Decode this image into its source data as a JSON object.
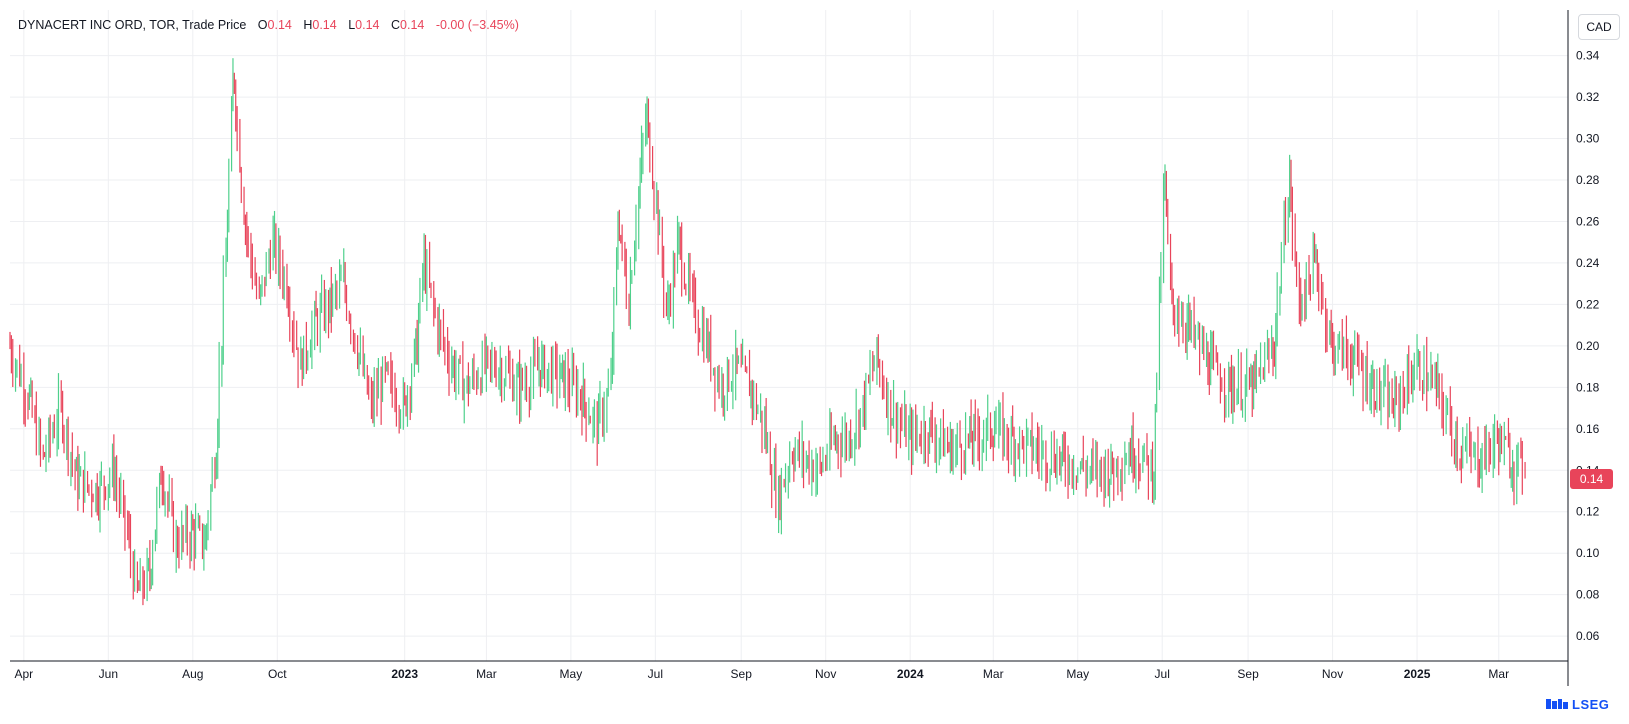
{
  "header": {
    "instrument": "DYNACERT INC ORD, TOR, Trade Price",
    "open_label": "O",
    "open_value": "0.14",
    "high_label": "H",
    "high_value": "0.14",
    "low_label": "L",
    "low_value": "0.14",
    "close_label": "C",
    "close_value": "0.14",
    "change": "-0.00 (−3.45%)"
  },
  "currency_button": "CAD",
  "last_price_label": "0.14",
  "brand": {
    "name": "LSEG",
    "icon": "lseg-logo-icon"
  },
  "colors": {
    "up": "#4fd08c",
    "down": "#e8445a",
    "grid": "#eeeff2",
    "axis": "#131722",
    "brand": "#1450f5"
  },
  "chart_data": {
    "type": "ohlc-bar",
    "title": "DYNACERT INC ORD, TOR, Trade Price",
    "currency": "CAD",
    "y_ticks": [
      "0.06",
      "0.08",
      "0.10",
      "0.12",
      "0.14",
      "0.16",
      "0.18",
      "0.20",
      "0.22",
      "0.24",
      "0.26",
      "0.28",
      "0.30",
      "0.32",
      "0.34"
    ],
    "ylim": [
      0.048,
      0.362
    ],
    "x_range": [
      "2022-03-22",
      "2025-04-20"
    ],
    "x_ticks": [
      {
        "date": "2022-04-01",
        "label": "Apr",
        "bold": false
      },
      {
        "date": "2022-06-01",
        "label": "Jun",
        "bold": false
      },
      {
        "date": "2022-08-01",
        "label": "Aug",
        "bold": false
      },
      {
        "date": "2022-10-01",
        "label": "Oct",
        "bold": false
      },
      {
        "date": "2023-01-01",
        "label": "2023",
        "bold": true
      },
      {
        "date": "2023-03-01",
        "label": "Mar",
        "bold": false
      },
      {
        "date": "2023-05-01",
        "label": "May",
        "bold": false
      },
      {
        "date": "2023-07-01",
        "label": "Jul",
        "bold": false
      },
      {
        "date": "2023-09-01",
        "label": "Sep",
        "bold": false
      },
      {
        "date": "2023-11-01",
        "label": "Nov",
        "bold": false
      },
      {
        "date": "2024-01-01",
        "label": "2024",
        "bold": true
      },
      {
        "date": "2024-03-01",
        "label": "Mar",
        "bold": false
      },
      {
        "date": "2024-05-01",
        "label": "May",
        "bold": false
      },
      {
        "date": "2024-07-01",
        "label": "Jul",
        "bold": false
      },
      {
        "date": "2024-09-01",
        "label": "Sep",
        "bold": false
      },
      {
        "date": "2024-11-01",
        "label": "Nov",
        "bold": false
      },
      {
        "date": "2025-01-01",
        "label": "2025",
        "bold": true
      },
      {
        "date": "2025-03-01",
        "label": "Mar",
        "bold": false
      }
    ],
    "series": [
      {
        "points": [
          [
            "2022-03-22",
            0.2
          ],
          [
            "2022-04-05",
            0.175
          ],
          [
            "2022-04-15",
            0.145
          ],
          [
            "2022-04-28",
            0.17
          ],
          [
            "2022-05-10",
            0.135
          ],
          [
            "2022-05-25",
            0.13
          ],
          [
            "2022-06-05",
            0.14
          ],
          [
            "2022-06-15",
            0.11
          ],
          [
            "2022-06-22",
            0.08
          ],
          [
            "2022-07-01",
            0.09
          ],
          [
            "2022-07-10",
            0.14
          ],
          [
            "2022-07-20",
            0.105
          ],
          [
            "2022-08-01",
            0.11
          ],
          [
            "2022-08-10",
            0.105
          ],
          [
            "2022-08-18",
            0.15
          ],
          [
            "2022-08-25",
            0.24
          ],
          [
            "2022-08-31",
            0.33
          ],
          [
            "2022-09-08",
            0.26
          ],
          [
            "2022-09-18",
            0.22
          ],
          [
            "2022-09-28",
            0.25
          ],
          [
            "2022-10-08",
            0.23
          ],
          [
            "2022-10-18",
            0.19
          ],
          [
            "2022-10-28",
            0.21
          ],
          [
            "2022-11-08",
            0.22
          ],
          [
            "2022-11-18",
            0.23
          ],
          [
            "2022-11-28",
            0.2
          ],
          [
            "2022-12-08",
            0.17
          ],
          [
            "2022-12-18",
            0.185
          ],
          [
            "2023-01-01",
            0.17
          ],
          [
            "2023-01-10",
            0.2
          ],
          [
            "2023-01-15",
            0.24
          ],
          [
            "2023-01-25",
            0.21
          ],
          [
            "2023-02-05",
            0.19
          ],
          [
            "2023-02-15",
            0.18
          ],
          [
            "2023-02-28",
            0.19
          ],
          [
            "2023-03-10",
            0.19
          ],
          [
            "2023-03-25",
            0.18
          ],
          [
            "2023-04-10",
            0.19
          ],
          [
            "2023-04-25",
            0.185
          ],
          [
            "2023-05-10",
            0.175
          ],
          [
            "2023-05-20",
            0.16
          ],
          [
            "2023-05-30",
            0.18
          ],
          [
            "2023-06-05",
            0.26
          ],
          [
            "2023-06-12",
            0.22
          ],
          [
            "2023-06-20",
            0.28
          ],
          [
            "2023-06-25",
            0.31
          ],
          [
            "2023-07-02",
            0.27
          ],
          [
            "2023-07-10",
            0.215
          ],
          [
            "2023-07-18",
            0.25
          ],
          [
            "2023-07-28",
            0.22
          ],
          [
            "2023-08-08",
            0.2
          ],
          [
            "2023-08-18",
            0.18
          ],
          [
            "2023-08-28",
            0.19
          ],
          [
            "2023-09-08",
            0.18
          ],
          [
            "2023-09-18",
            0.16
          ],
          [
            "2023-09-28",
            0.125
          ],
          [
            "2023-10-08",
            0.15
          ],
          [
            "2023-10-18",
            0.145
          ],
          [
            "2023-10-28",
            0.14
          ],
          [
            "2023-11-08",
            0.155
          ],
          [
            "2023-11-18",
            0.155
          ],
          [
            "2023-11-28",
            0.17
          ],
          [
            "2023-12-08",
            0.195
          ],
          [
            "2023-12-18",
            0.17
          ],
          [
            "2024-01-01",
            0.155
          ],
          [
            "2024-01-15",
            0.16
          ],
          [
            "2024-01-30",
            0.15
          ],
          [
            "2024-02-15",
            0.155
          ],
          [
            "2024-03-01",
            0.16
          ],
          [
            "2024-03-15",
            0.155
          ],
          [
            "2024-04-01",
            0.15
          ],
          [
            "2024-04-20",
            0.145
          ],
          [
            "2024-05-10",
            0.14
          ],
          [
            "2024-05-25",
            0.14
          ],
          [
            "2024-06-10",
            0.15
          ],
          [
            "2024-06-25",
            0.14
          ],
          [
            "2024-07-03",
            0.28
          ],
          [
            "2024-07-08",
            0.22
          ],
          [
            "2024-07-20",
            0.21
          ],
          [
            "2024-08-05",
            0.19
          ],
          [
            "2024-08-20",
            0.18
          ],
          [
            "2024-09-05",
            0.18
          ],
          [
            "2024-09-20",
            0.2
          ],
          [
            "2024-10-01",
            0.28
          ],
          [
            "2024-10-08",
            0.22
          ],
          [
            "2024-10-20",
            0.24
          ],
          [
            "2024-11-01",
            0.2
          ],
          [
            "2024-11-15",
            0.195
          ],
          [
            "2024-12-01",
            0.18
          ],
          [
            "2024-12-15",
            0.17
          ],
          [
            "2025-01-01",
            0.19
          ],
          [
            "2025-01-15",
            0.18
          ],
          [
            "2025-02-01",
            0.15
          ],
          [
            "2025-02-15",
            0.145
          ],
          [
            "2025-03-01",
            0.155
          ],
          [
            "2025-03-10",
            0.145
          ],
          [
            "2025-03-20",
            0.14
          ]
        ]
      }
    ]
  }
}
